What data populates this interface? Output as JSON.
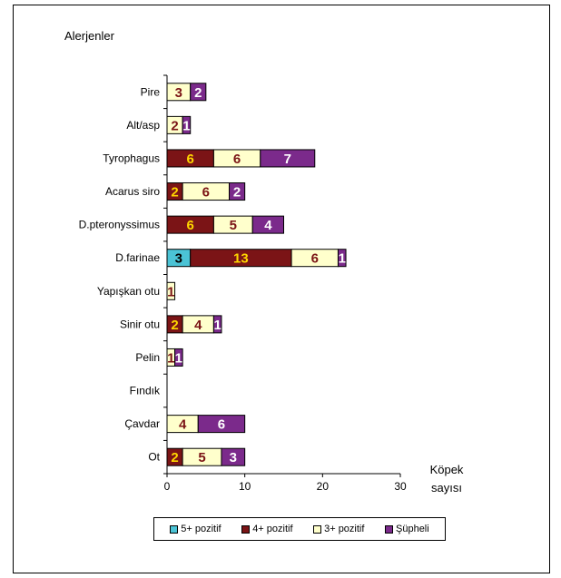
{
  "chart_data": {
    "type": "bar",
    "orientation": "horizontal",
    "stacked": true,
    "title": "Alerjenler",
    "xlabel_line1": "Köpek",
    "xlabel_line2": "sayısı",
    "xlim": [
      0,
      30
    ],
    "xticks": [
      "0",
      "10",
      "20",
      "30"
    ],
    "grid": false,
    "legend_position": "bottom",
    "categories": [
      "Pire",
      "Alt/asp",
      "Tyrophagus",
      "Acarus siro",
      "D.pteronyssimus",
      "D.farinae",
      "Yapışkan otu",
      "Sinir otu",
      "Pelin",
      "Fındık",
      "Çavdar",
      "Ot"
    ],
    "series": [
      {
        "name": "5+ pozitif",
        "color": "#4BC3D5",
        "label_color": "#000000",
        "values": [
          0,
          0,
          0,
          0,
          0,
          3,
          0,
          0,
          0,
          0,
          0,
          0
        ]
      },
      {
        "name": "4+ pozitif",
        "color": "#7B1416",
        "label_color": "#FFD700",
        "values": [
          0,
          0,
          6,
          2,
          6,
          13,
          0,
          2,
          0,
          0,
          0,
          2
        ]
      },
      {
        "name": "3+ pozitif",
        "color": "#FFFFCC",
        "label_color": "#7B1416",
        "values": [
          3,
          2,
          6,
          6,
          5,
          6,
          1,
          4,
          1,
          0,
          4,
          5
        ]
      },
      {
        "name": "Şüpheli",
        "color": "#7B2A8B",
        "label_color": "#FFFFFF",
        "values": [
          2,
          1,
          7,
          2,
          4,
          1,
          0,
          1,
          1,
          0,
          6,
          3
        ]
      }
    ]
  }
}
